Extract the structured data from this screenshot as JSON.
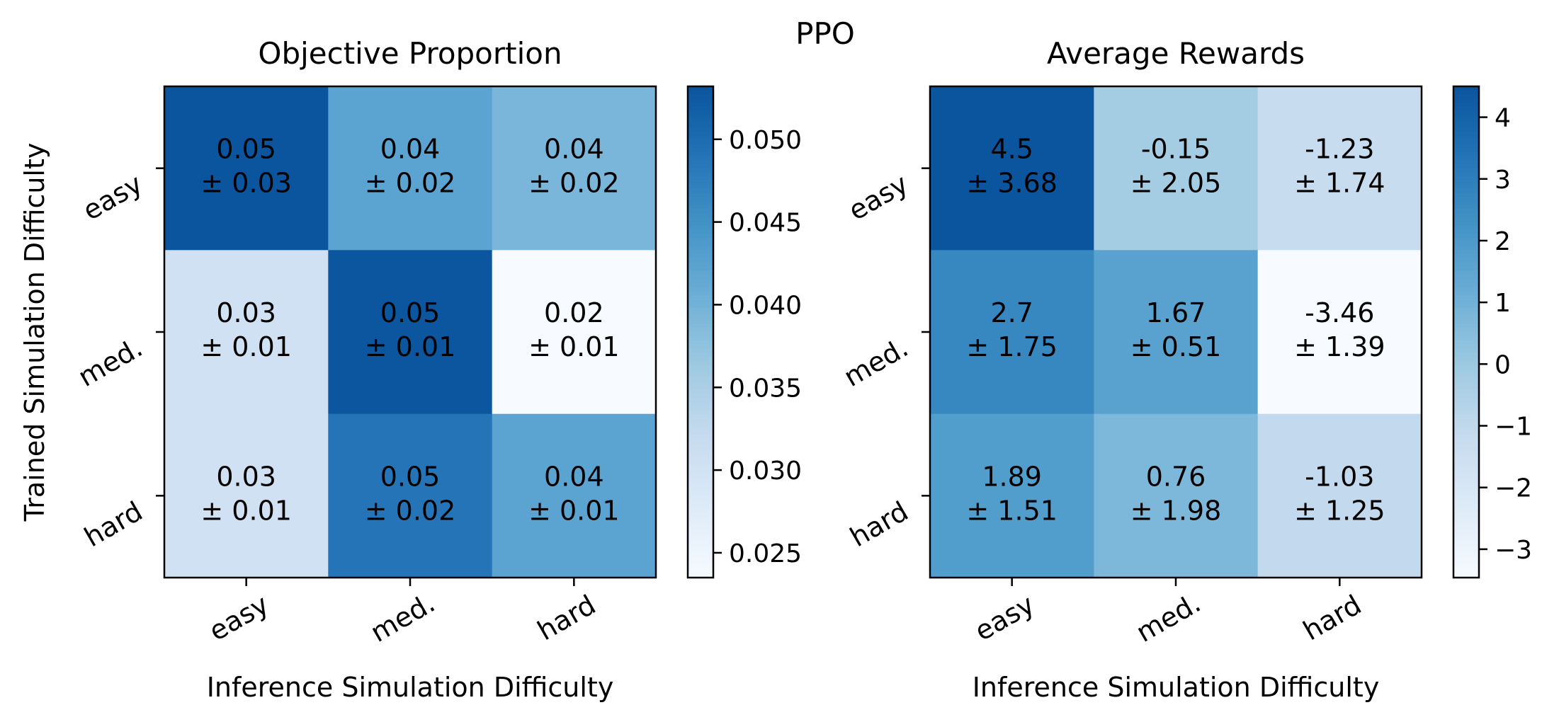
{
  "suptitle": "PPO",
  "chart_data": [
    {
      "type": "heatmap",
      "title": "Objective Proportion",
      "xlabel": "Inference Simulation Difficulty",
      "ylabel": "Trained Simulation Difficulty",
      "x_categories": [
        "easy",
        "med.",
        "hard"
      ],
      "y_categories": [
        "easy",
        "med.",
        "hard"
      ],
      "values": [
        [
          0.05,
          0.04,
          0.04
        ],
        [
          0.03,
          0.05,
          0.02
        ],
        [
          0.03,
          0.05,
          0.04
        ]
      ],
      "color_values": [
        [
          0.0532,
          0.0425,
          0.0395
        ],
        [
          0.0305,
          0.053,
          0.0235
        ],
        [
          0.0305,
          0.049,
          0.0425
        ]
      ],
      "cell_text": [
        [
          "0.05",
          "0.04",
          "0.04"
        ],
        [
          "0.03",
          "0.05",
          "0.02"
        ],
        [
          "0.03",
          "0.05",
          "0.04"
        ]
      ],
      "cell_error_text": [
        [
          "± 0.03",
          "± 0.02",
          "± 0.02"
        ],
        [
          "± 0.01",
          "± 0.01",
          "± 0.01"
        ],
        [
          "± 0.01",
          "± 0.02",
          "± 0.01"
        ]
      ],
      "colorbar": {
        "min": 0.0235,
        "max": 0.0532,
        "ticks": [
          0.025,
          0.03,
          0.035,
          0.04,
          0.045,
          0.05
        ],
        "tick_labels": [
          "0.025",
          "0.030",
          "0.035",
          "0.040",
          "0.045",
          "0.050"
        ]
      },
      "colormap": "Blues"
    },
    {
      "type": "heatmap",
      "title": "Average Rewards",
      "xlabel": "Inference Simulation Difficulty",
      "ylabel": "",
      "x_categories": [
        "easy",
        "med.",
        "hard"
      ],
      "y_categories": [
        "easy",
        "med.",
        "hard"
      ],
      "values": [
        [
          4.5,
          -0.15,
          -1.23
        ],
        [
          2.7,
          1.67,
          -3.46
        ],
        [
          1.89,
          0.76,
          -1.03
        ]
      ],
      "cell_text": [
        [
          "4.5",
          "-0.15",
          "-1.23"
        ],
        [
          "2.7",
          "1.67",
          "-3.46"
        ],
        [
          "1.89",
          "0.76",
          "-1.03"
        ]
      ],
      "cell_error_text": [
        [
          "± 3.68",
          "± 2.05",
          "± 1.74"
        ],
        [
          "± 1.75",
          "± 0.51",
          "± 1.39"
        ],
        [
          "± 1.51",
          "± 1.98",
          "± 1.25"
        ]
      ],
      "colorbar": {
        "min": -3.46,
        "max": 4.5,
        "ticks": [
          -3,
          -2,
          -1,
          0,
          1,
          2,
          3,
          4
        ],
        "tick_labels": [
          "−3",
          "−2",
          "−1",
          "0",
          "1",
          "2",
          "3",
          "4"
        ]
      },
      "colormap": "Blues"
    }
  ]
}
